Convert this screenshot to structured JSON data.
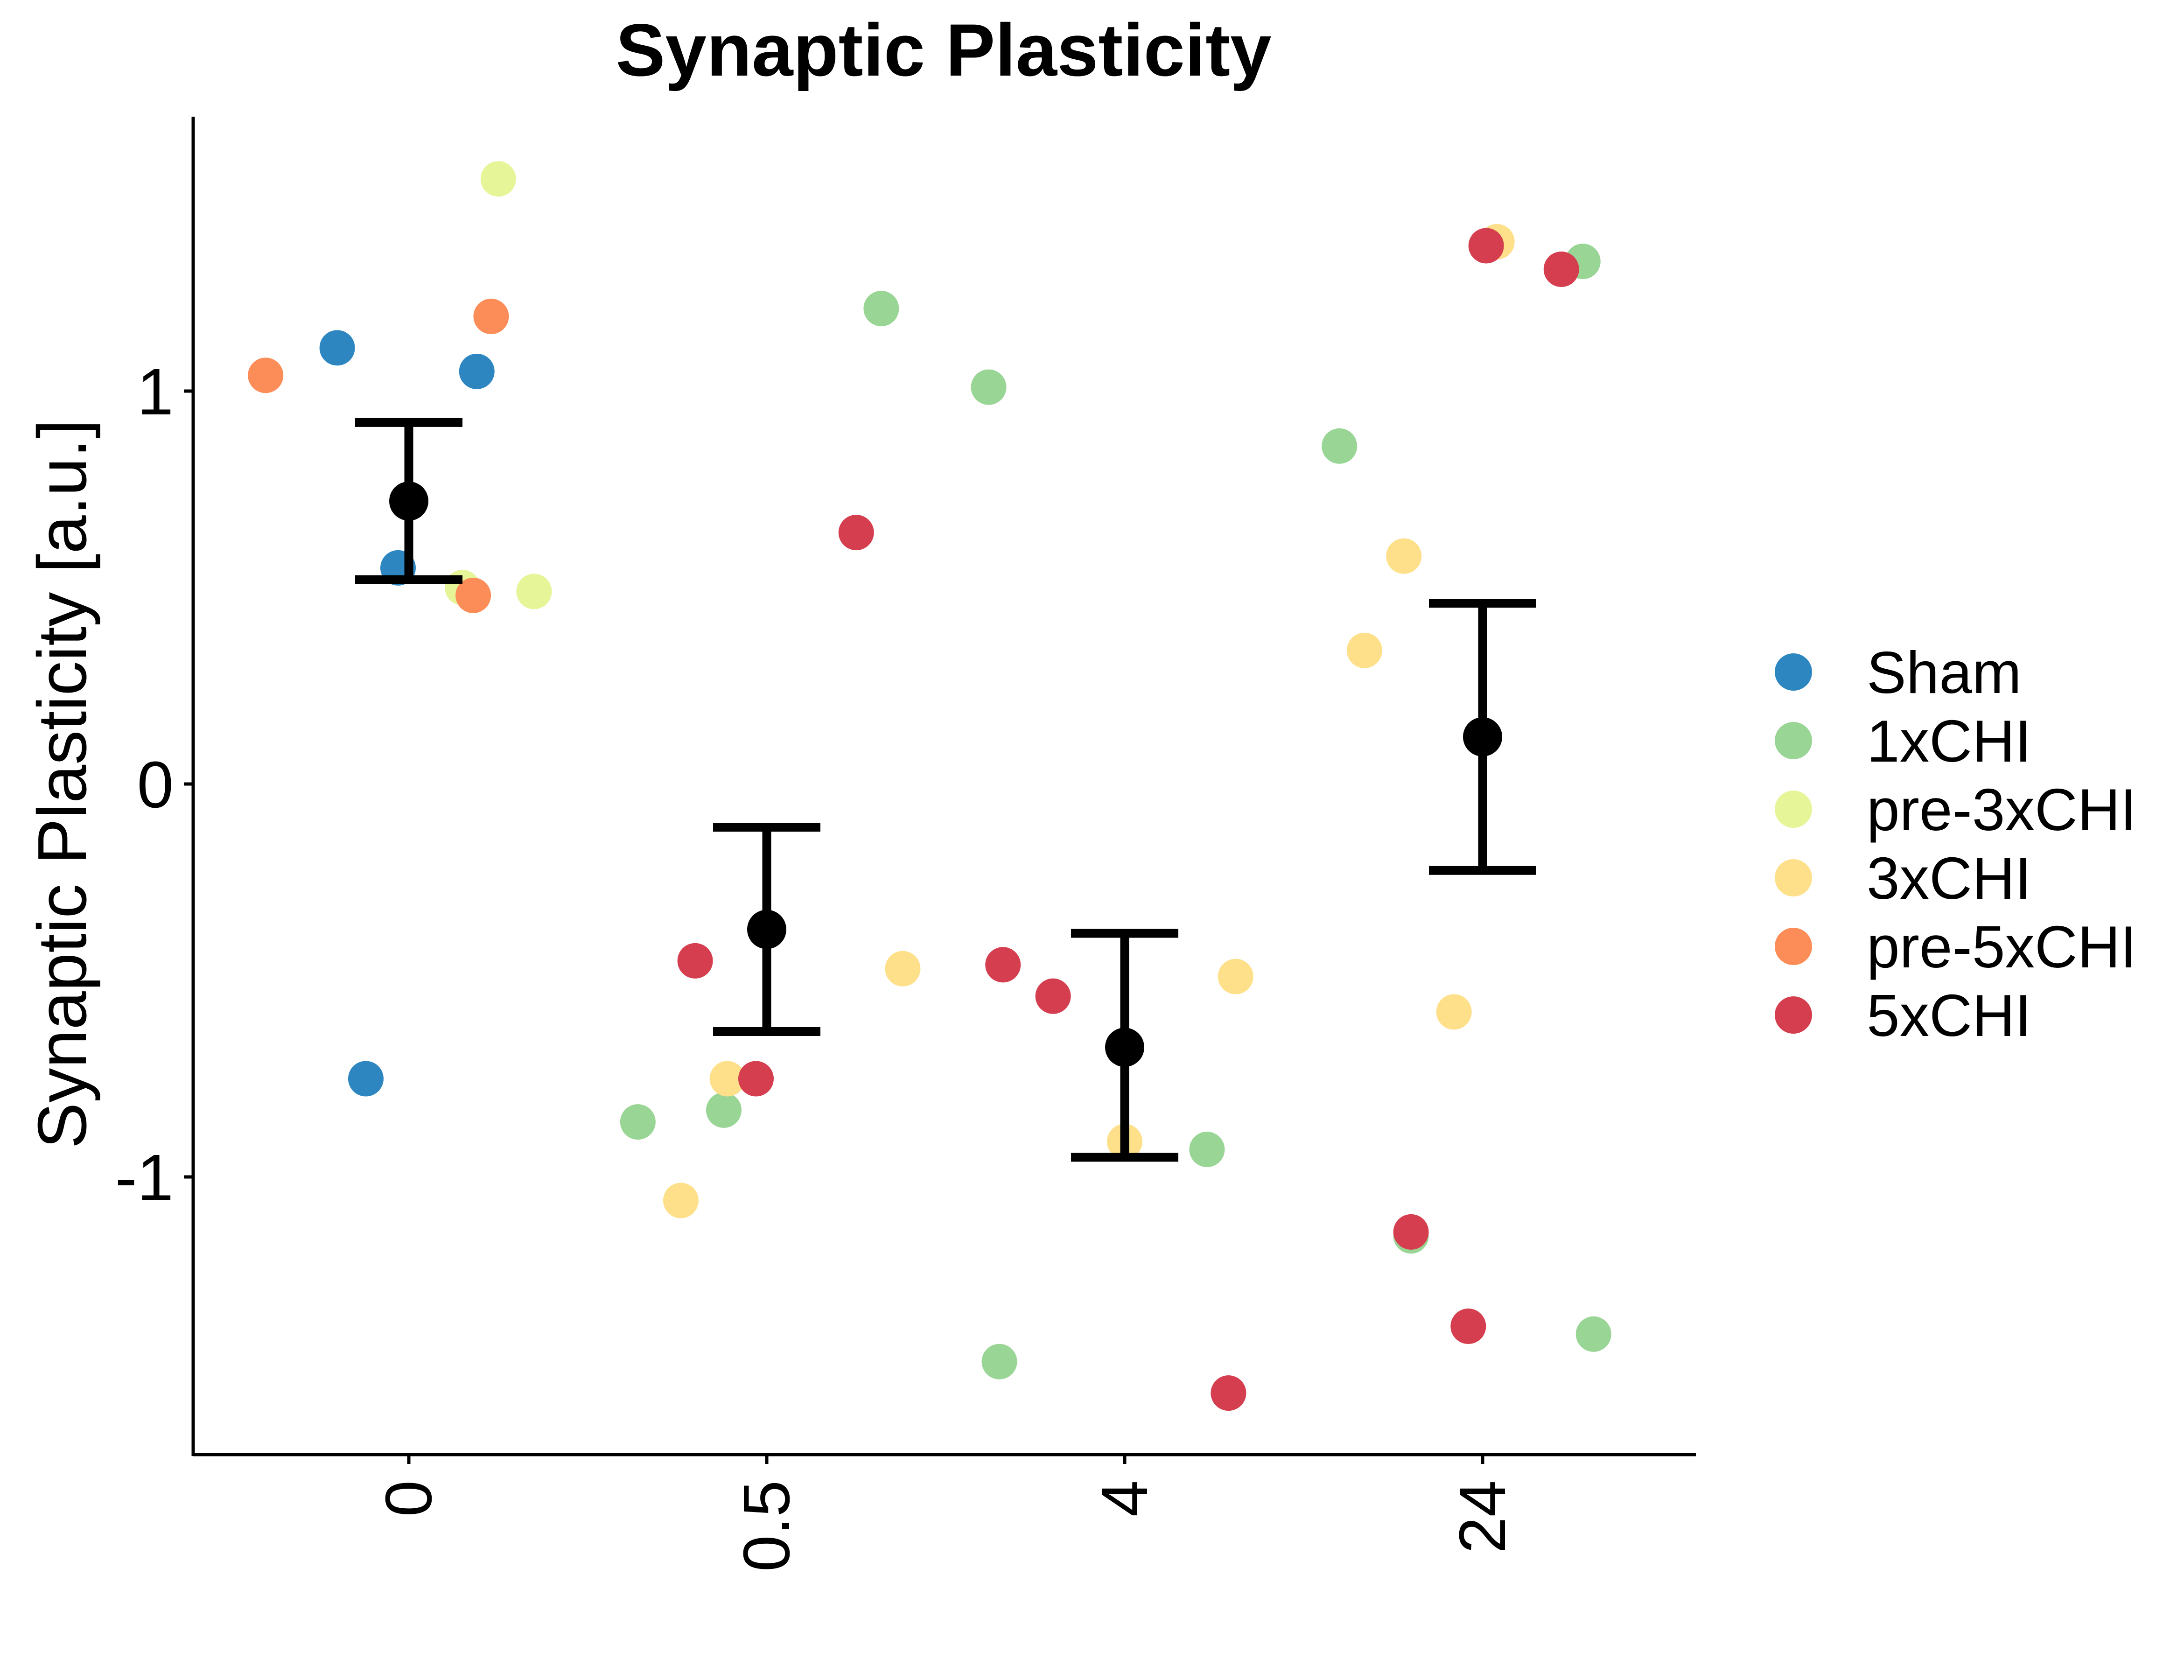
{
  "chart_data": {
    "type": "scatter",
    "title": "Synaptic Plasticity",
    "xlabel": "",
    "ylabel": "Synaptic Plasticity [a.u.]",
    "x_categories": [
      "0",
      "0.5",
      "4",
      "24"
    ],
    "y_ticks": [
      {
        "value": -1,
        "label": "-1"
      },
      {
        "value": 0,
        "label": "0"
      },
      {
        "value": 1,
        "label": "1"
      }
    ],
    "ylim": [
      -1.7,
      1.7
    ],
    "grid": false,
    "legend_position": "right",
    "series": [
      {
        "name": "Sham",
        "color": "#2E86C1",
        "points": [
          {
            "x": "0",
            "offset": -0.2,
            "y": 1.11
          },
          {
            "x": "0",
            "offset": 0.19,
            "y": 1.05
          },
          {
            "x": "0",
            "offset": -0.03,
            "y": 0.55
          },
          {
            "x": "0",
            "offset": -0.12,
            "y": -0.75
          }
        ]
      },
      {
        "name": "1xCHI",
        "color": "#99D594",
        "points": [
          {
            "x": "0.5",
            "offset": -0.36,
            "y": -0.86
          },
          {
            "x": "0.5",
            "offset": -0.12,
            "y": -0.83
          },
          {
            "x": "0.5",
            "offset": 0.32,
            "y": 1.21
          },
          {
            "x": "0.5",
            "offset": 0.62,
            "y": 1.01
          },
          {
            "x": "4",
            "offset": 0.23,
            "y": -0.93
          },
          {
            "x": "4",
            "offset": -0.35,
            "y": -1.47
          },
          {
            "x": "24",
            "offset": -0.4,
            "y": 0.86
          },
          {
            "x": "24",
            "offset": 0.28,
            "y": 1.33
          },
          {
            "x": "24",
            "offset": 0.31,
            "y": -1.4
          },
          {
            "x": "24",
            "offset": -0.2,
            "y": -1.15
          }
        ]
      },
      {
        "name": "pre-3xCHI",
        "color": "#E6F598",
        "points": [
          {
            "x": "0",
            "offset": 0.25,
            "y": 1.54
          },
          {
            "x": "0",
            "offset": 0.35,
            "y": 0.49
          },
          {
            "x": "0",
            "offset": 0.15,
            "y": 0.5
          }
        ]
      },
      {
        "name": "3xCHI",
        "color": "#FEE08B",
        "points": [
          {
            "x": "0.5",
            "offset": -0.24,
            "y": -1.06
          },
          {
            "x": "0.5",
            "offset": -0.11,
            "y": -0.75
          },
          {
            "x": "0.5",
            "offset": 0.38,
            "y": -0.47
          },
          {
            "x": "4",
            "offset": 0.31,
            "y": -0.49
          },
          {
            "x": "4",
            "offset": 0.0,
            "y": -0.91
          },
          {
            "x": "24",
            "offset": -0.22,
            "y": 0.58
          },
          {
            "x": "24",
            "offset": -0.33,
            "y": 0.34
          },
          {
            "x": "24",
            "offset": -0.08,
            "y": -0.58
          },
          {
            "x": "24",
            "offset": 0.04,
            "y": 1.38
          }
        ]
      },
      {
        "name": "pre-5xCHI",
        "color": "#FC8D59",
        "points": [
          {
            "x": "0",
            "offset": -0.4,
            "y": 1.04
          },
          {
            "x": "0",
            "offset": 0.23,
            "y": 1.19
          },
          {
            "x": "0",
            "offset": 0.18,
            "y": 0.48
          }
        ]
      },
      {
        "name": "5xCHI",
        "color": "#D53E4F",
        "points": [
          {
            "x": "0.5",
            "offset": -0.2,
            "y": -0.45
          },
          {
            "x": "0.5",
            "offset": -0.03,
            "y": -0.75
          },
          {
            "x": "0.5",
            "offset": 0.25,
            "y": 0.64
          },
          {
            "x": "4",
            "offset": -0.34,
            "y": -0.46
          },
          {
            "x": "4",
            "offset": -0.2,
            "y": -0.54
          },
          {
            "x": "4",
            "offset": 0.29,
            "y": -1.55
          },
          {
            "x": "24",
            "offset": 0.01,
            "y": 1.37
          },
          {
            "x": "24",
            "offset": 0.22,
            "y": 1.31
          },
          {
            "x": "24",
            "offset": -0.2,
            "y": -1.14
          },
          {
            "x": "24",
            "offset": -0.04,
            "y": -1.38
          }
        ]
      }
    ],
    "summary": {
      "color": "#000000",
      "points": [
        {
          "x": "0",
          "mean": 0.72,
          "lower": 0.52,
          "upper": 0.92
        },
        {
          "x": "0.5",
          "mean": -0.37,
          "lower": -0.63,
          "upper": -0.11
        },
        {
          "x": "4",
          "mean": -0.67,
          "lower": -0.95,
          "upper": -0.38
        },
        {
          "x": "24",
          "mean": 0.12,
          "lower": -0.22,
          "upper": 0.46
        }
      ]
    }
  }
}
